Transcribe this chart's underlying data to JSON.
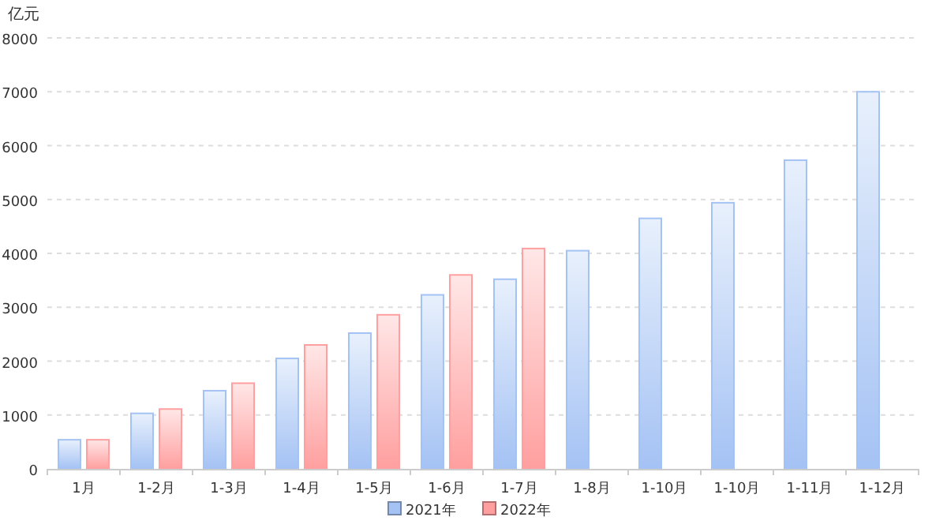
{
  "chart_data": {
    "type": "bar",
    "ylabel": "亿元",
    "categories": [
      "1月",
      "1-2月",
      "1-3月",
      "1-4月",
      "1-5月",
      "1-6月",
      "1-7月",
      "1-8月",
      "1-10月",
      "1-10月",
      "1-11月",
      "1-12月"
    ],
    "series": [
      {
        "name": "2021年",
        "color": "#a4c2f4",
        "values": [
          540,
          1030,
          1450,
          2050,
          2520,
          3230,
          3520,
          4050,
          4650,
          4940,
          5730,
          7000
        ]
      },
      {
        "name": "2022年",
        "color": "#ff9f9f",
        "values": [
          540,
          1110,
          1590,
          2300,
          2860,
          3600,
          4090,
          null,
          null,
          null,
          null,
          null
        ]
      }
    ],
    "ylim": [
      0,
      8000
    ],
    "yticks": [
      0,
      1000,
      2000,
      3000,
      4000,
      5000,
      6000,
      7000,
      8000
    ],
    "grid": "y",
    "legend": "bottom"
  }
}
